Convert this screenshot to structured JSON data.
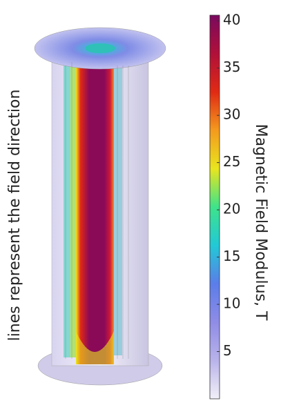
{
  "chart_data": {
    "type": "colorbar",
    "annotation": "lines represent the field direction",
    "colorbar_label": "Magnetic Field Modulus, T",
    "clim": [
      0,
      40.6
    ],
    "ticks": [
      5,
      10,
      15,
      20,
      25,
      30,
      35,
      40
    ],
    "colormap": [
      "#f2f0f8",
      "#b9b3ea",
      "#8f8ce6",
      "#5b7de9",
      "#22c9d6",
      "#3ee38a",
      "#e9e51e",
      "#f49a1e",
      "#e02a14",
      "#b0103a",
      "#7a0a5e"
    ]
  }
}
